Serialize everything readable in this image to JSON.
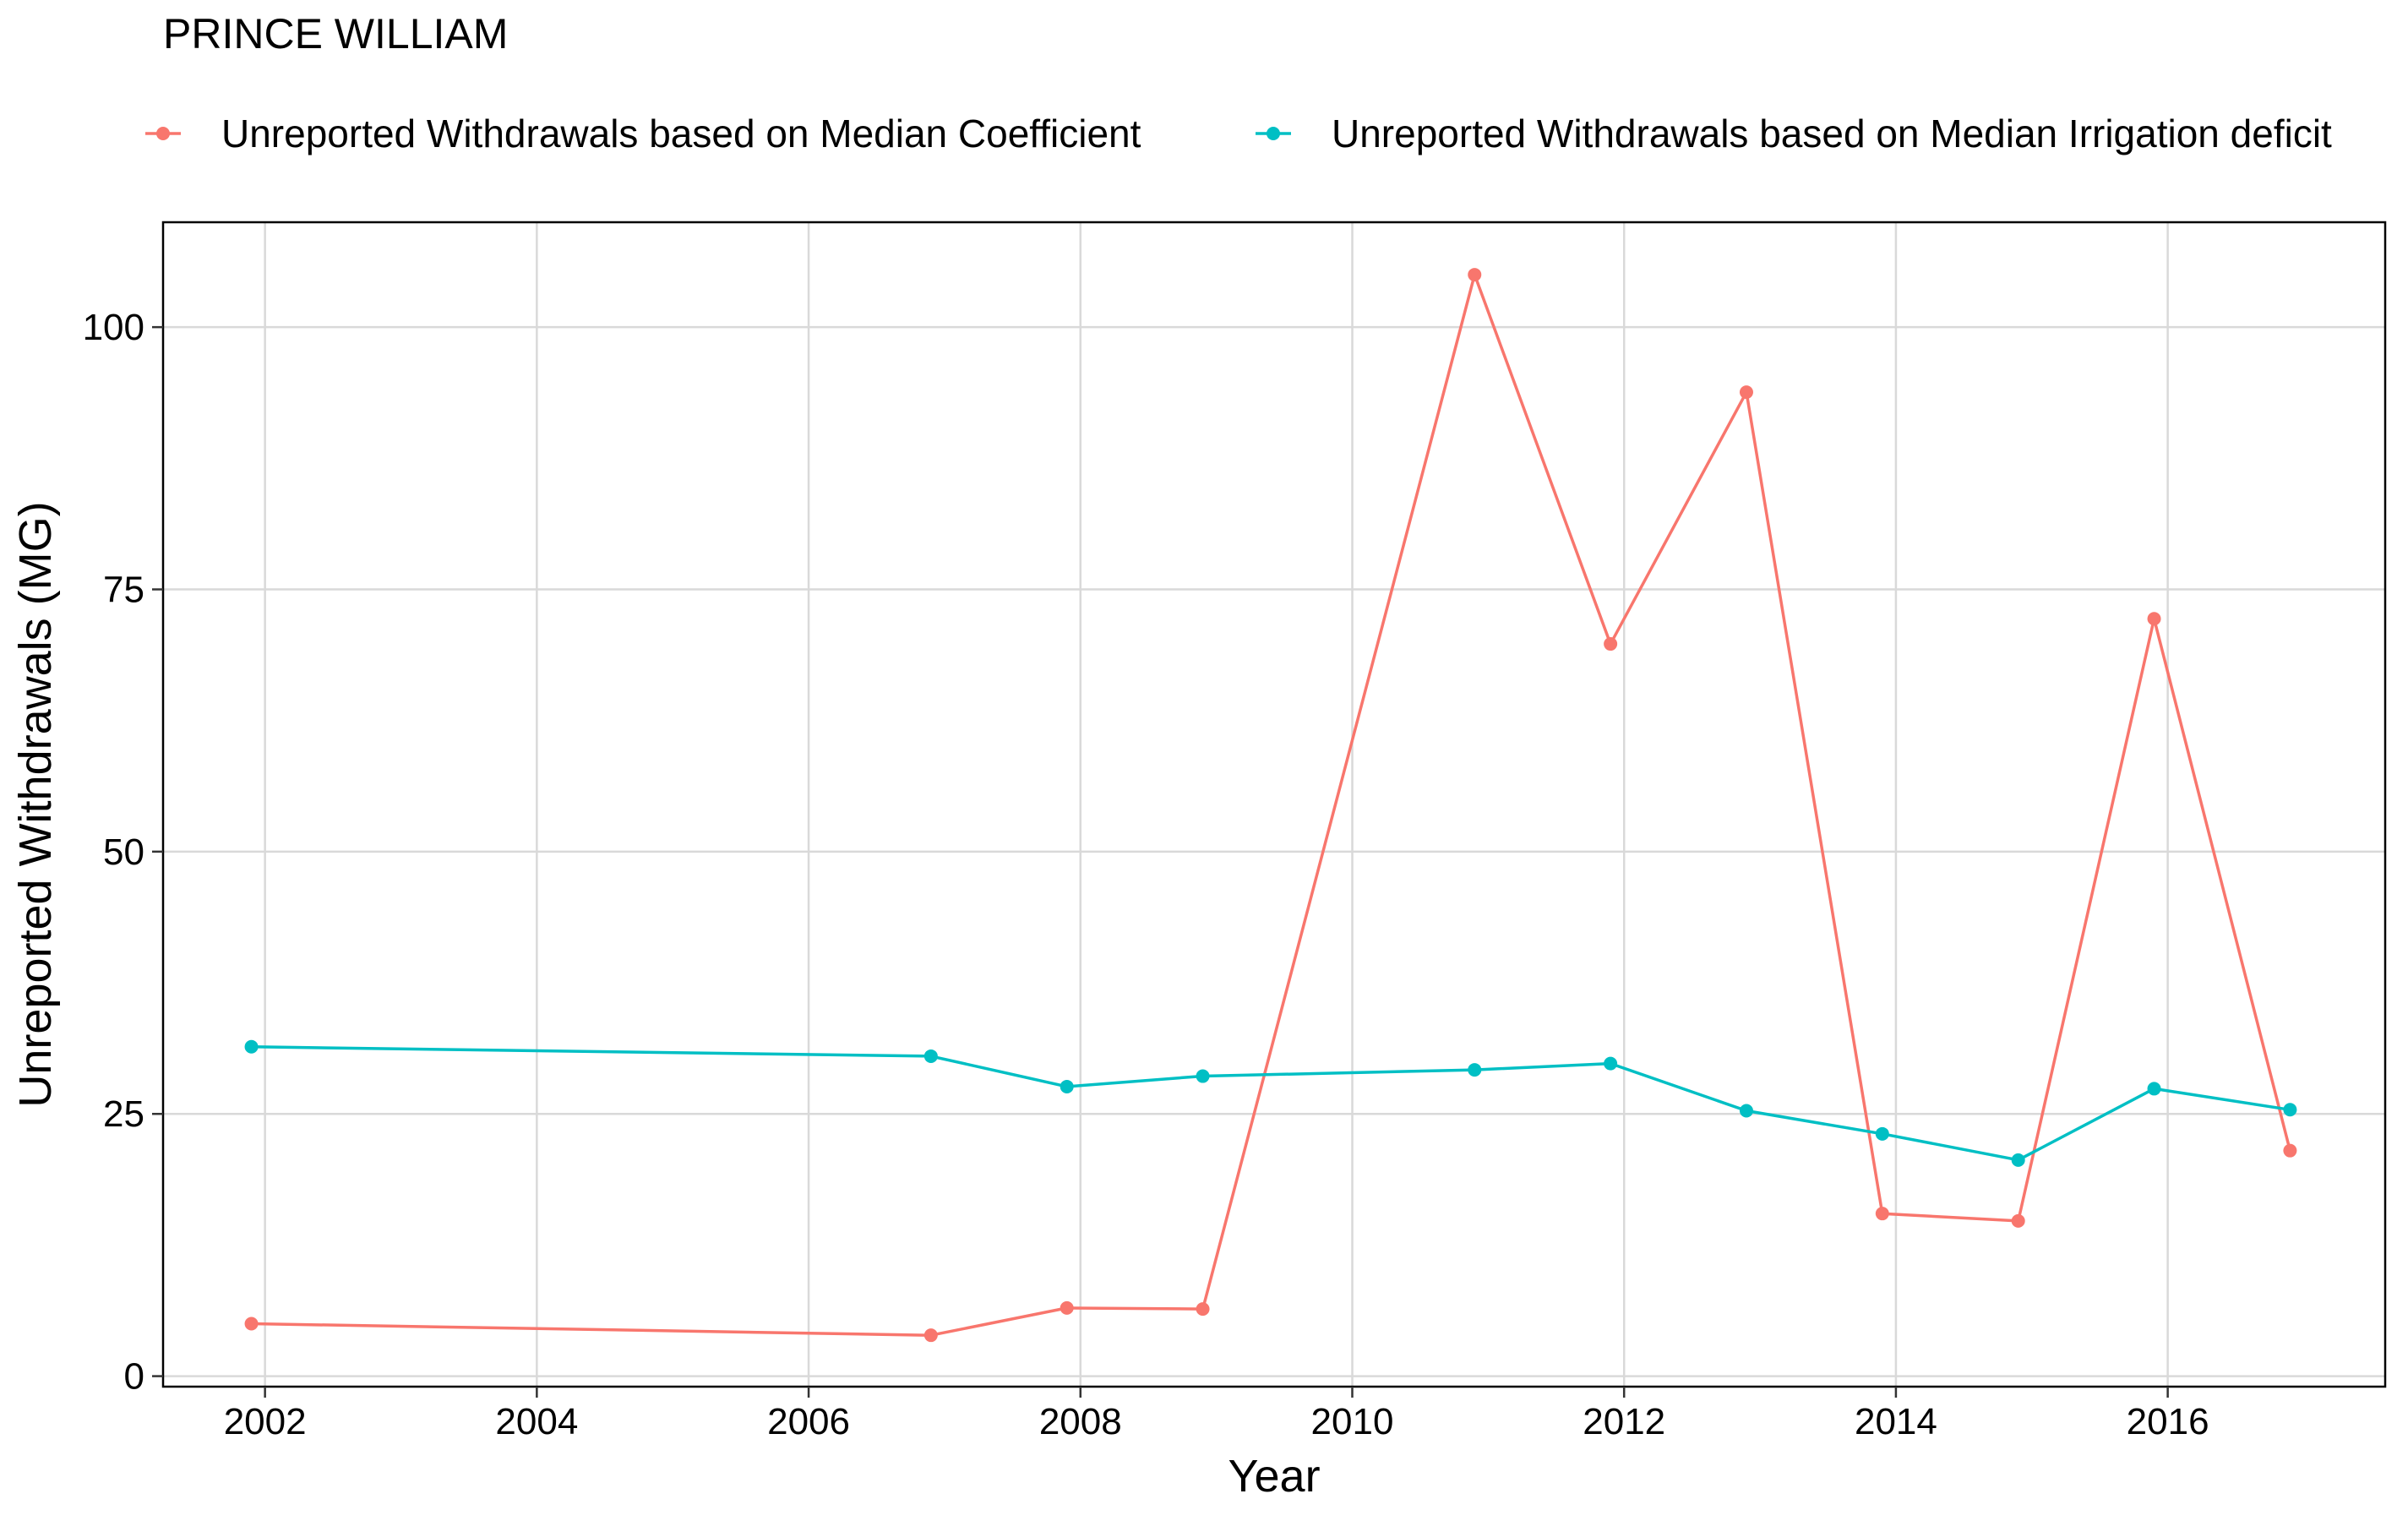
{
  "chart_data": {
    "type": "line",
    "title": "PRINCE WILLIAM",
    "xlabel": "Year",
    "ylabel": "Unreported Withdrawals (MG)",
    "xlim": [
      2001.25,
      2017.6
    ],
    "ylim": [
      -1,
      110
    ],
    "x_ticks": [
      2002,
      2004,
      2006,
      2008,
      2010,
      2012,
      2014,
      2016
    ],
    "y_ticks": [
      0,
      25,
      50,
      75,
      100
    ],
    "grid": true,
    "legend_position": "top",
    "series": [
      {
        "name": "Unreported Withdrawals based on Median Coefficient",
        "color": "#F8766D",
        "x": [
          2001.9,
          2006.9,
          2007.9,
          2008.9,
          2010.9,
          2011.9,
          2012.9,
          2013.9,
          2014.9,
          2015.9,
          2016.9
        ],
        "y": [
          5.0,
          3.9,
          6.5,
          6.4,
          105.0,
          69.8,
          93.8,
          15.5,
          14.8,
          72.2,
          21.5
        ]
      },
      {
        "name": "Unreported Withdrawals based on Median Irrigation deficit",
        "color": "#00BFC4",
        "x": [
          2001.9,
          2006.9,
          2007.9,
          2008.9,
          2010.9,
          2011.9,
          2012.9,
          2013.9,
          2014.9,
          2015.9,
          2016.9
        ],
        "y": [
          31.4,
          30.5,
          27.6,
          28.6,
          29.2,
          29.8,
          25.3,
          23.1,
          20.6,
          27.4,
          25.4
        ]
      }
    ]
  }
}
